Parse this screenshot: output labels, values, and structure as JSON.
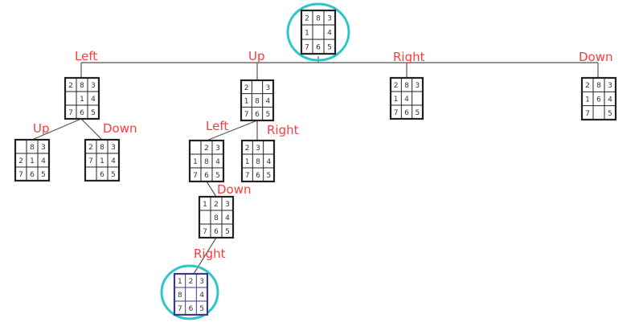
{
  "colors": {
    "label": "#ff3b3b",
    "line": "#555555",
    "board_border": "#222222",
    "cell_text": "#333333",
    "highlight_circle": "#2cc6c6",
    "goal_border": "#3a3a8c"
  },
  "nodes": [
    {
      "id": "root",
      "cells": [
        "2",
        "8",
        "3",
        "1",
        "",
        "4",
        "7",
        "6",
        "5"
      ],
      "highlight": true
    },
    {
      "id": "left",
      "cells": [
        "2",
        "8",
        "3",
        "",
        "1",
        "4",
        "7",
        "6",
        "5"
      ]
    },
    {
      "id": "up",
      "cells": [
        "2",
        "",
        "3",
        "1",
        "8",
        "4",
        "7",
        "6",
        "5"
      ]
    },
    {
      "id": "right",
      "cells": [
        "2",
        "8",
        "3",
        "1",
        "4",
        "",
        "7",
        "6",
        "5"
      ]
    },
    {
      "id": "down",
      "cells": [
        "2",
        "8",
        "3",
        "1",
        "6",
        "4",
        "7",
        "",
        "5"
      ]
    },
    {
      "id": "left-up",
      "cells": [
        "",
        "8",
        "3",
        "2",
        "1",
        "4",
        "7",
        "6",
        "5"
      ]
    },
    {
      "id": "left-down",
      "cells": [
        "2",
        "8",
        "3",
        "7",
        "1",
        "4",
        "",
        "6",
        "5"
      ]
    },
    {
      "id": "up-left",
      "cells": [
        "",
        "2",
        "3",
        "1",
        "8",
        "4",
        "7",
        "6",
        "5"
      ]
    },
    {
      "id": "up-right",
      "cells": [
        "2",
        "3",
        "",
        "1",
        "8",
        "4",
        "7",
        "6",
        "5"
      ]
    },
    {
      "id": "up-left-down",
      "cells": [
        "1",
        "2",
        "3",
        "",
        "8",
        "4",
        "7",
        "6",
        "5"
      ]
    },
    {
      "id": "goal",
      "cells": [
        "1",
        "2",
        "3",
        "8",
        "",
        "4",
        "7",
        "6",
        "5"
      ],
      "highlight": true,
      "goal": true
    }
  ],
  "moves": [
    {
      "id": "root-left",
      "label": "Left"
    },
    {
      "id": "root-up",
      "label": "Up"
    },
    {
      "id": "root-right",
      "label": "Right"
    },
    {
      "id": "root-down",
      "label": "Down"
    },
    {
      "id": "left-up",
      "label": "Up"
    },
    {
      "id": "left-down",
      "label": "Down"
    },
    {
      "id": "up-left",
      "label": "Left"
    },
    {
      "id": "up-right",
      "label": "Right"
    },
    {
      "id": "up-left-down",
      "label": "Down"
    },
    {
      "id": "down-right",
      "label": "Right"
    }
  ]
}
